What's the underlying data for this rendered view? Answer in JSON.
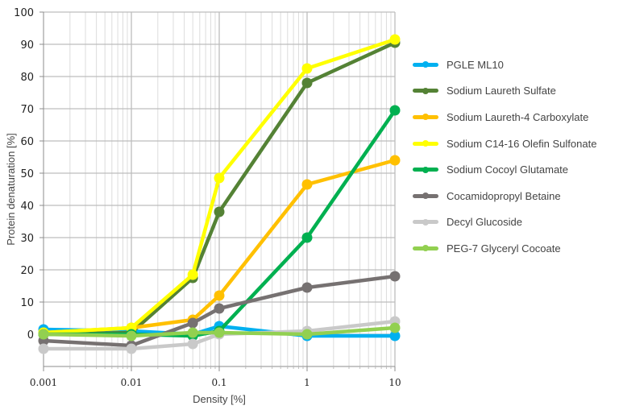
{
  "chart_data": {
    "type": "line",
    "title": "",
    "xlabel": "Density [%]",
    "ylabel": "Protein denaturation [%]",
    "xscale": "log",
    "x": [
      0.001,
      0.01,
      0.05,
      0.1,
      1,
      10
    ],
    "x_ticks": [
      "0.001",
      "0.01",
      "0.1",
      "1",
      "10"
    ],
    "x_tick_values": [
      0.001,
      0.01,
      0.1,
      1,
      10
    ],
    "y_ticks": [
      "100",
      "90",
      "80",
      "70",
      "60",
      "50",
      "40",
      "30",
      "20",
      "10",
      "0"
    ],
    "y_tick_values": [
      100,
      90,
      80,
      70,
      60,
      50,
      40,
      30,
      20,
      10,
      0
    ],
    "ylim": [
      -10,
      100
    ],
    "xlim": [
      0.001,
      10
    ],
    "grid": true,
    "legend_position": "right",
    "series": [
      {
        "name": "PGLE ML10",
        "color": "#00b0f0",
        "values": [
          1.5,
          1,
          0,
          2.5,
          -0.5,
          -0.5
        ]
      },
      {
        "name": "Sodium Laureth Sulfate",
        "color": "#548235",
        "values": [
          0,
          0.5,
          17.5,
          38,
          78,
          90.5
        ]
      },
      {
        "name": "Sodium Laureth-4 Carboxylate",
        "color": "#ffc000",
        "values": [
          0.5,
          2,
          4.5,
          12,
          46.5,
          54
        ]
      },
      {
        "name": "Sodium C14-16 Olefin Sulfonate",
        "color": "#ffff00",
        "values": [
          0.5,
          2,
          18.5,
          48.5,
          82.5,
          91.5
        ]
      },
      {
        "name": "Sodium Cocoyl Glutamate",
        "color": "#00b050",
        "values": [
          0,
          0,
          -0.5,
          1,
          30,
          69.5
        ]
      },
      {
        "name": "Cocamidopropyl Betaine",
        "color": "#767171",
        "values": [
          -2,
          -3.5,
          3.5,
          8,
          14.5,
          18
        ]
      },
      {
        "name": "Decyl Glucoside",
        "color": "#c9c9c9",
        "values": [
          -4.5,
          -4.5,
          -3,
          0,
          1,
          4
        ]
      },
      {
        "name": "PEG-7 Glyceryl Cocoate",
        "color": "#92d050",
        "values": [
          0,
          -0.5,
          0.5,
          0.5,
          0,
          2
        ]
      }
    ]
  },
  "legend": {
    "items": [
      {
        "label": "PGLE ML10",
        "color": "#00b0f0"
      },
      {
        "label": "Sodium Laureth Sulfate",
        "color": "#548235"
      },
      {
        "label": "Sodium Laureth-4 Carboxylate",
        "color": "#ffc000"
      },
      {
        "label": "Sodium C14-16 Olefin Sulfonate",
        "color": "#ffff00"
      },
      {
        "label": "Sodium Cocoyl Glutamate",
        "color": "#00b050"
      },
      {
        "label": "Cocamidopropyl Betaine",
        "color": "#767171"
      },
      {
        "label": "Decyl Glucoside",
        "color": "#c9c9c9"
      },
      {
        "label": "PEG-7 Glyceryl Cocoate",
        "color": "#92d050"
      }
    ]
  }
}
